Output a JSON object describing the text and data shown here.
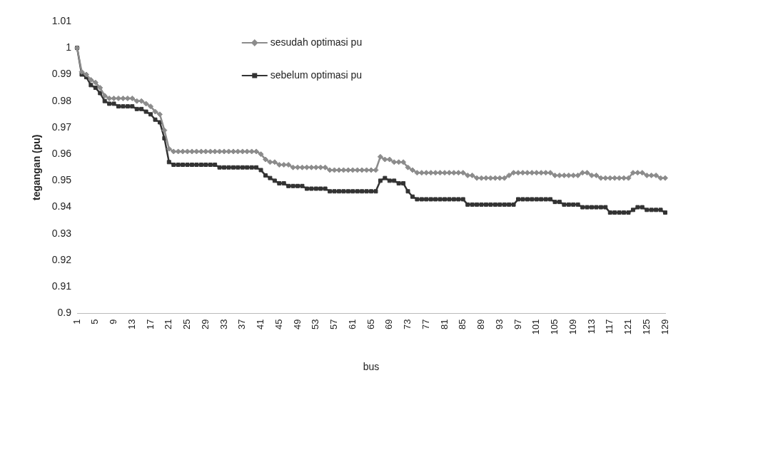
{
  "chart_data": {
    "type": "line",
    "xlabel": "bus",
    "ylabel": "tegangan (pu)",
    "categories": [
      "1",
      null,
      null,
      null,
      "5",
      null,
      null,
      null,
      "9",
      null,
      null,
      null,
      "13",
      null,
      null,
      null,
      "17",
      null,
      null,
      null,
      "21",
      null,
      null,
      null,
      "25",
      null,
      null,
      null,
      "29",
      null,
      null,
      null,
      "33",
      null,
      null,
      null,
      "37",
      null,
      null,
      null,
      "41",
      null,
      null,
      null,
      "45",
      null,
      null,
      null,
      "49",
      null,
      null,
      null,
      "53",
      null,
      null,
      null,
      "57",
      null,
      null,
      null,
      "61",
      null,
      null,
      null,
      "65",
      null,
      null,
      null,
      "69",
      null,
      null,
      null,
      "73",
      null,
      null,
      null,
      "77",
      null,
      null,
      null,
      "81",
      null,
      null,
      null,
      "85",
      null,
      null,
      null,
      "89",
      null,
      null,
      null,
      "93",
      null,
      null,
      null,
      "97",
      null,
      null,
      null,
      "101",
      null,
      null,
      null,
      "105",
      null,
      null,
      null,
      "109",
      null,
      null,
      null,
      "113",
      null,
      null,
      null,
      "117",
      null,
      null,
      null,
      "121",
      null,
      null,
      null,
      "125",
      null,
      null,
      null,
      "129"
    ],
    "series": [
      {
        "name": "sesudah optimasi pu",
        "color": "#8c8c8c",
        "marker": "diamond",
        "values": [
          1.0,
          0.991,
          0.99,
          0.988,
          0.987,
          0.985,
          0.982,
          0.981,
          0.981,
          0.981,
          0.981,
          0.981,
          0.981,
          0.98,
          0.98,
          0.979,
          0.978,
          0.976,
          0.975,
          0.969,
          0.962,
          0.961,
          0.961,
          0.961,
          0.961,
          0.961,
          0.961,
          0.961,
          0.961,
          0.961,
          0.961,
          0.961,
          0.961,
          0.961,
          0.961,
          0.961,
          0.961,
          0.961,
          0.961,
          0.961,
          0.96,
          0.958,
          0.957,
          0.957,
          0.956,
          0.956,
          0.956,
          0.955,
          0.955,
          0.955,
          0.955,
          0.955,
          0.955,
          0.955,
          0.955,
          0.954,
          0.954,
          0.954,
          0.954,
          0.954,
          0.954,
          0.954,
          0.954,
          0.954,
          0.954,
          0.954,
          0.959,
          0.958,
          0.958,
          0.957,
          0.957,
          0.957,
          0.955,
          0.954,
          0.953,
          0.953,
          0.953,
          0.953,
          0.953,
          0.953,
          0.953,
          0.953,
          0.953,
          0.953,
          0.953,
          0.952,
          0.952,
          0.951,
          0.951,
          0.951,
          0.951,
          0.951,
          0.951,
          0.951,
          0.952,
          0.953,
          0.953,
          0.953,
          0.953,
          0.953,
          0.953,
          0.953,
          0.953,
          0.953,
          0.952,
          0.952,
          0.952,
          0.952,
          0.952,
          0.952,
          0.953,
          0.953,
          0.952,
          0.952,
          0.951,
          0.951,
          0.951,
          0.951,
          0.951,
          0.951,
          0.951,
          0.953,
          0.953,
          0.953,
          0.952,
          0.952,
          0.952,
          0.951,
          0.951
        ]
      },
      {
        "name": "sebelum optimasi pu",
        "color": "#333333",
        "marker": "square",
        "values": [
          1.0,
          0.99,
          0.989,
          0.986,
          0.985,
          0.983,
          0.98,
          0.979,
          0.979,
          0.978,
          0.978,
          0.978,
          0.978,
          0.977,
          0.977,
          0.976,
          0.975,
          0.973,
          0.972,
          0.966,
          0.957,
          0.956,
          0.956,
          0.956,
          0.956,
          0.956,
          0.956,
          0.956,
          0.956,
          0.956,
          0.956,
          0.955,
          0.955,
          0.955,
          0.955,
          0.955,
          0.955,
          0.955,
          0.955,
          0.955,
          0.954,
          0.952,
          0.951,
          0.95,
          0.949,
          0.949,
          0.948,
          0.948,
          0.948,
          0.948,
          0.947,
          0.947,
          0.947,
          0.947,
          0.947,
          0.946,
          0.946,
          0.946,
          0.946,
          0.946,
          0.946,
          0.946,
          0.946,
          0.946,
          0.946,
          0.946,
          0.95,
          0.951,
          0.95,
          0.95,
          0.949,
          0.949,
          0.946,
          0.944,
          0.943,
          0.943,
          0.943,
          0.943,
          0.943,
          0.943,
          0.943,
          0.943,
          0.943,
          0.943,
          0.943,
          0.941,
          0.941,
          0.941,
          0.941,
          0.941,
          0.941,
          0.941,
          0.941,
          0.941,
          0.941,
          0.941,
          0.943,
          0.943,
          0.943,
          0.943,
          0.943,
          0.943,
          0.943,
          0.943,
          0.942,
          0.942,
          0.941,
          0.941,
          0.941,
          0.941,
          0.94,
          0.94,
          0.94,
          0.94,
          0.94,
          0.94,
          0.938,
          0.938,
          0.938,
          0.938,
          0.938,
          0.939,
          0.94,
          0.94,
          0.939,
          0.939,
          0.939,
          0.939,
          0.938
        ]
      }
    ],
    "ylim": [
      0.9,
      1.01
    ],
    "yticks": [
      0.9,
      0.91,
      0.92,
      0.93,
      0.94,
      0.95,
      0.96,
      0.97,
      0.98,
      0.99,
      1,
      1.01
    ],
    "grid": false,
    "legend": "top",
    "line_style": "solid"
  }
}
